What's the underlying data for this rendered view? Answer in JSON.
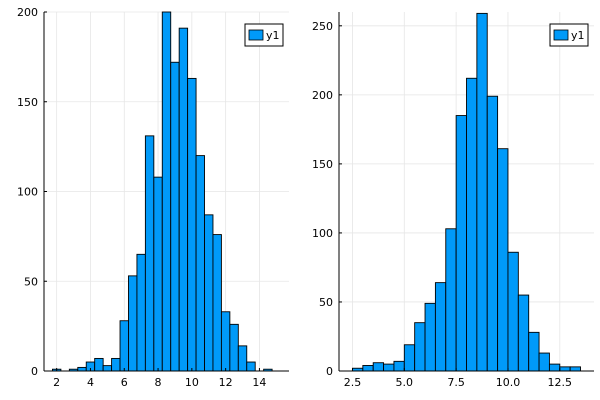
{
  "colors": {
    "bar_fill": "#009af9",
    "bar_stroke": "#000000",
    "axis": "#000000",
    "grid": "#e6e6e6",
    "background": "#ffffff"
  },
  "chart_data": [
    {
      "type": "bar",
      "subtype": "histogram",
      "bin_width": 0.5,
      "bins_start": [
        1.75,
        2.25,
        2.75,
        3.25,
        3.75,
        4.25,
        4.75,
        5.25,
        5.75,
        6.25,
        6.75,
        7.25,
        7.75,
        8.25,
        8.75,
        9.25,
        9.75,
        10.25,
        10.75,
        11.25,
        11.75,
        12.25,
        12.75,
        13.25,
        13.75,
        14.25,
        14.75
      ],
      "counts": [
        1,
        0,
        1,
        2,
        5,
        7,
        3,
        7,
        28,
        53,
        65,
        131,
        108,
        200,
        172,
        191,
        163,
        120,
        87,
        76,
        33,
        26,
        14,
        5,
        0,
        1,
        0
      ],
      "xlim": [
        1.25,
        15.75
      ],
      "ylim": [
        0,
        200
      ],
      "x_ticks": [
        "2",
        "4",
        "6",
        "8",
        "10",
        "12",
        "14"
      ],
      "x_tick_values": [
        2,
        4,
        6,
        8,
        10,
        12,
        14
      ],
      "y_ticks": [
        "0",
        "50",
        "100",
        "150",
        "200"
      ],
      "y_tick_values": [
        0,
        50,
        100,
        150,
        200
      ],
      "legend": {
        "label": "y1",
        "placement": "top-right"
      },
      "grid": true
    },
    {
      "type": "bar",
      "subtype": "histogram",
      "bin_width": 0.5,
      "bins_start": [
        2.5,
        3.0,
        3.5,
        4.0,
        4.5,
        5.0,
        5.5,
        6.0,
        6.5,
        7.0,
        7.5,
        8.0,
        8.5,
        9.0,
        9.5,
        10.0,
        10.5,
        11.0,
        11.5,
        12.0,
        12.5,
        13.0
      ],
      "counts": [
        2,
        4,
        6,
        5,
        7,
        19,
        35,
        49,
        64,
        103,
        185,
        212,
        259,
        199,
        161,
        86,
        55,
        28,
        13,
        5,
        3,
        3
      ],
      "xlim": [
        1.85,
        14.15
      ],
      "ylim": [
        0,
        260
      ],
      "x_ticks": [
        "2.5",
        "5.0",
        "7.5",
        "10.0",
        "12.5"
      ],
      "x_tick_values": [
        2.5,
        5.0,
        7.5,
        10.0,
        12.5
      ],
      "y_ticks": [
        "0",
        "50",
        "100",
        "150",
        "200",
        "250"
      ],
      "y_tick_values": [
        0,
        50,
        100,
        150,
        200,
        250
      ],
      "legend": {
        "label": "y1",
        "placement": "top-right"
      },
      "grid": true
    }
  ]
}
